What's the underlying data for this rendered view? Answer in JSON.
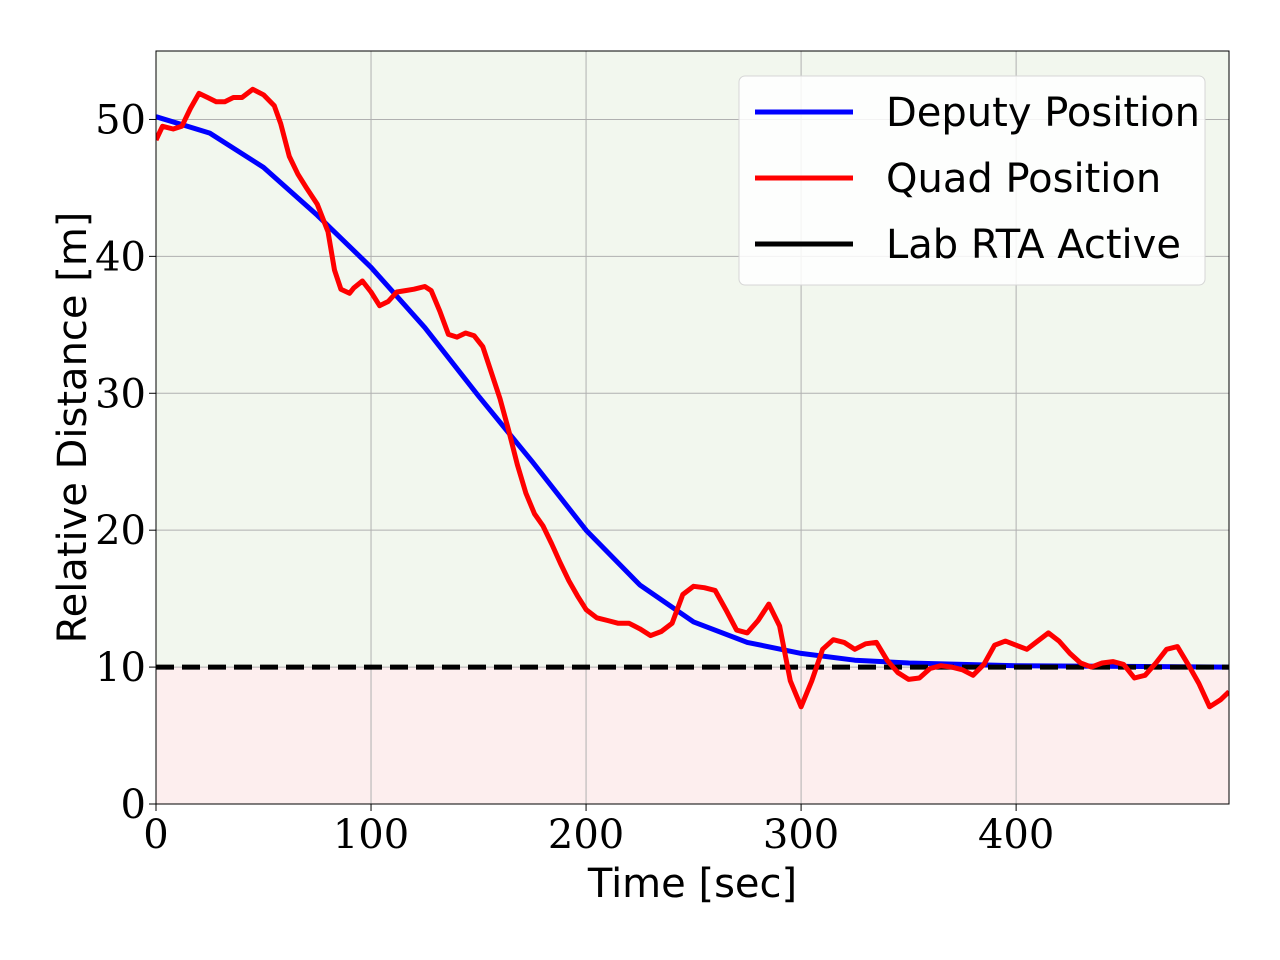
{
  "chart_data": {
    "type": "line",
    "xlabel": "Time [sec]",
    "ylabel": "Relative Distance [m]",
    "xlim": [
      0,
      499
    ],
    "ylim": [
      0,
      55
    ],
    "x_ticks": [
      0,
      100,
      200,
      300,
      400
    ],
    "y_ticks": [
      0,
      10,
      20,
      30,
      40,
      50
    ],
    "grid": true,
    "legend_position": "top-right",
    "threshold": 10,
    "regions": [
      {
        "name": "safe",
        "from": 10,
        "to": 55,
        "color": "#f2f7ee"
      },
      {
        "name": "unsafe",
        "from": 0,
        "to": 10,
        "color": "#fdeeee"
      }
    ],
    "series": [
      {
        "name": "Deputy Position",
        "color": "#0000ff",
        "style": "solid",
        "x": [
          0,
          25,
          50,
          75,
          100,
          125,
          150,
          175,
          200,
          225,
          250,
          275,
          300,
          325,
          350,
          400,
          450,
          499
        ],
        "y": [
          50.2,
          49.0,
          46.5,
          43.0,
          39.2,
          34.8,
          29.8,
          25.0,
          20.0,
          16.0,
          13.3,
          11.8,
          11.0,
          10.5,
          10.3,
          10.1,
          10.05,
          10.0
        ]
      },
      {
        "name": "Quad Position",
        "color": "#ff0000",
        "style": "solid",
        "x": [
          0,
          3,
          8,
          12,
          16,
          20,
          24,
          28,
          32,
          36,
          40,
          45,
          50,
          55,
          58,
          62,
          66,
          70,
          75,
          80,
          83,
          86,
          90,
          92,
          96,
          100,
          104,
          108,
          112,
          116,
          120,
          125,
          128,
          132,
          136,
          140,
          144,
          148,
          152,
          156,
          160,
          164,
          168,
          172,
          176,
          180,
          184,
          188,
          192,
          196,
          200,
          205,
          210,
          215,
          220,
          225,
          230,
          235,
          240,
          245,
          250,
          255,
          260,
          265,
          270,
          275,
          280,
          285,
          290,
          295,
          300,
          305,
          310,
          315,
          320,
          325,
          330,
          335,
          340,
          345,
          350,
          355,
          360,
          365,
          370,
          375,
          380,
          385,
          390,
          395,
          400,
          405,
          410,
          415,
          420,
          425,
          430,
          435,
          440,
          445,
          450,
          455,
          460,
          465,
          470,
          475,
          480,
          485,
          490,
          495,
          499
        ],
        "y": [
          48.5,
          49.5,
          49.3,
          49.5,
          50.8,
          51.9,
          51.6,
          51.3,
          51.3,
          51.6,
          51.6,
          52.2,
          51.8,
          51.0,
          49.7,
          47.3,
          46.0,
          45.0,
          43.8,
          41.8,
          39.0,
          37.6,
          37.3,
          37.7,
          38.2,
          37.4,
          36.4,
          36.7,
          37.4,
          37.5,
          37.6,
          37.8,
          37.5,
          36.0,
          34.3,
          34.1,
          34.4,
          34.2,
          33.4,
          31.5,
          29.6,
          27.3,
          24.8,
          22.7,
          21.2,
          20.3,
          19.0,
          17.6,
          16.3,
          15.2,
          14.2,
          13.6,
          13.4,
          13.2,
          13.2,
          12.8,
          12.3,
          12.6,
          13.2,
          15.3,
          15.9,
          15.8,
          15.6,
          14.2,
          12.7,
          12.5,
          13.4,
          14.6,
          13.0,
          9.0,
          7.1,
          9.0,
          11.3,
          12.0,
          11.8,
          11.3,
          11.7,
          11.8,
          10.5,
          9.6,
          9.1,
          9.2,
          9.9,
          10.1,
          10.0,
          9.8,
          9.4,
          10.2,
          11.6,
          11.9,
          11.6,
          11.3,
          11.9,
          12.5,
          11.9,
          11.0,
          10.3,
          10.0,
          10.3,
          10.4,
          10.2,
          9.2,
          9.4,
          10.3,
          11.3,
          11.5,
          10.2,
          8.8,
          7.1,
          7.6,
          8.2
        ]
      },
      {
        "name": "Lab RTA Active",
        "color": "#000000",
        "style": "dashed",
        "x": [
          0,
          499
        ],
        "y": [
          10,
          10
        ]
      }
    ]
  }
}
